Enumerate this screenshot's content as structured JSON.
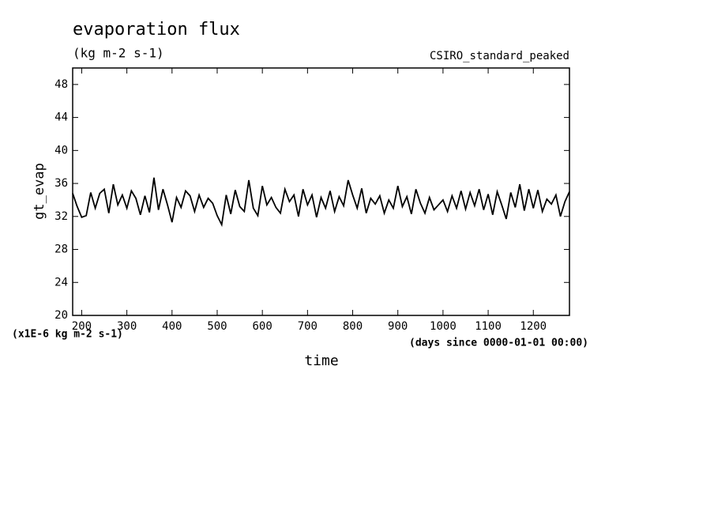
{
  "chart_data": {
    "type": "line",
    "title": "evaporation flux",
    "subtitle": "(kg m-2 s-1)",
    "annotation": "CSIRO_standard_peaked",
    "ylabel": "gt_evap",
    "xlabel": "time",
    "y_unit_note": "(x1E-6 kg m-2 s-1)",
    "x_unit_note": "(days since 0000-01-01 00:00)",
    "color": "#000000",
    "xlim": [
      180,
      1280
    ],
    "xticks": [
      200,
      300,
      400,
      500,
      600,
      700,
      800,
      900,
      1000,
      1100,
      1200
    ],
    "ylim": [
      20,
      50
    ],
    "yticks": [
      20,
      24,
      28,
      32,
      36,
      40,
      44,
      48
    ],
    "x": [
      180,
      190,
      200,
      210,
      220,
      230,
      240,
      250,
      260,
      270,
      280,
      290,
      300,
      310,
      320,
      330,
      340,
      350,
      360,
      370,
      380,
      390,
      400,
      410,
      420,
      430,
      440,
      450,
      460,
      470,
      480,
      490,
      500,
      510,
      520,
      530,
      540,
      550,
      560,
      570,
      580,
      590,
      600,
      610,
      620,
      630,
      640,
      650,
      660,
      670,
      680,
      690,
      700,
      710,
      720,
      730,
      740,
      750,
      760,
      770,
      780,
      790,
      800,
      810,
      820,
      830,
      840,
      850,
      860,
      870,
      880,
      890,
      900,
      910,
      920,
      930,
      940,
      950,
      960,
      970,
      980,
      990,
      1000,
      1010,
      1020,
      1030,
      1040,
      1050,
      1060,
      1070,
      1080,
      1090,
      1100,
      1110,
      1120,
      1130,
      1140,
      1150,
      1160,
      1170,
      1180,
      1190,
      1200,
      1210,
      1220,
      1230,
      1240,
      1250,
      1260,
      1270,
      1280
    ],
    "values": [
      34.8,
      33.2,
      31.9,
      32.1,
      34.9,
      33.0,
      34.8,
      35.3,
      32.4,
      35.9,
      33.4,
      34.6,
      33.0,
      35.1,
      34.2,
      32.2,
      34.5,
      32.5,
      36.7,
      32.8,
      35.3,
      33.4,
      31.3,
      34.3,
      33.1,
      35.1,
      34.5,
      32.6,
      34.6,
      33.1,
      34.2,
      33.6,
      32.1,
      31.0,
      34.6,
      32.3,
      35.2,
      33.2,
      32.6,
      36.4,
      33.0,
      32.1,
      35.7,
      33.4,
      34.3,
      33.1,
      32.4,
      35.3,
      33.8,
      34.6,
      32.0,
      35.3,
      33.4,
      34.6,
      31.9,
      34.3,
      33.0,
      35.1,
      32.6,
      34.4,
      33.3,
      36.4,
      34.6,
      33.0,
      35.4,
      32.4,
      34.2,
      33.5,
      34.5,
      32.4,
      34.0,
      33.0,
      35.7,
      33.2,
      34.4,
      32.3,
      35.3,
      33.6,
      32.4,
      34.3,
      32.8,
      33.4,
      34.0,
      32.6,
      34.5,
      33.0,
      35.1,
      32.9,
      34.9,
      33.3,
      35.3,
      32.8,
      34.7,
      32.2,
      35.0,
      33.4,
      31.7,
      34.9,
      33.1,
      35.9,
      32.7,
      35.3,
      33.0,
      35.2,
      32.6,
      34.1,
      33.5,
      34.6,
      32.0,
      33.8,
      35.0
    ]
  }
}
